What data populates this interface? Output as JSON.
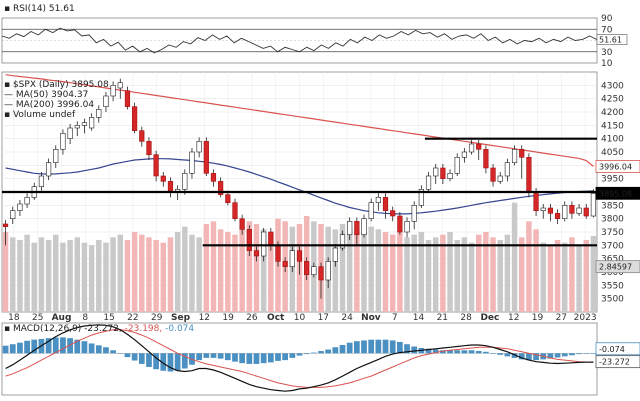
{
  "rsi": {
    "label": "RSI(14) 51.61",
    "value": 51.61,
    "levels": [
      70,
      50,
      30
    ],
    "ylim": [
      10,
      90
    ],
    "tick_labels": [
      "90",
      "70",
      "50",
      "30",
      "10"
    ],
    "current_label": "51.61",
    "series": [
      58,
      54,
      62,
      57,
      66,
      60,
      70,
      64,
      72,
      67,
      69,
      58,
      60,
      46,
      52,
      40,
      47,
      33,
      40,
      30,
      36,
      28,
      34,
      42,
      38,
      48,
      44,
      55,
      50,
      60,
      52,
      58,
      46,
      54,
      48,
      42,
      36,
      40,
      30,
      38,
      34,
      30,
      38,
      32,
      42,
      36,
      46,
      40,
      52,
      46,
      56,
      50,
      60,
      54,
      58,
      66,
      60,
      68,
      62,
      64,
      56,
      62,
      52,
      58,
      60,
      54,
      62,
      50,
      56,
      46,
      52,
      44,
      50,
      48,
      54,
      46,
      52,
      48,
      56,
      50,
      52,
      58,
      51.61
    ]
  },
  "price": {
    "symbol_label": "$SPX (Daily) 3895.08",
    "ma50_label": "MA(50) 3904.37",
    "ma200_label": "MA(200) 3996.04",
    "volume_label": "Volume undef",
    "ylim": [
      3450,
      4350
    ],
    "tick_labels": [
      "4300",
      "4250",
      "4200",
      "4150",
      "4100",
      "4050",
      "4000",
      "3950",
      "3900",
      "3850",
      "3800",
      "3750",
      "3700",
      "3650",
      "3600",
      "3550",
      "3500"
    ],
    "tick_values": [
      4300,
      4250,
      4200,
      4150,
      4100,
      4050,
      4000,
      3950,
      3900,
      3850,
      3800,
      3750,
      3700,
      3650,
      3600,
      3550,
      3500
    ],
    "last_close_label": "3895.08",
    "ma200_tag": "3996.04",
    "volume_tag": "2.84597",
    "horizontal_lines": [
      {
        "name": "resistance-4100",
        "value": 4100,
        "start_index": 59,
        "end_index": 82
      },
      {
        "name": "support-3900",
        "value": 3900,
        "start_index": 0,
        "end_index": 82
      },
      {
        "name": "support-3700",
        "value": 3700,
        "start_index": 28,
        "end_index": 82
      }
    ],
    "candles": [
      [
        3780,
        3770,
        3700
      ],
      [
        3800,
        3830,
        3780
      ],
      [
        3830,
        3855,
        3810
      ],
      [
        3855,
        3880,
        3840
      ],
      [
        3880,
        3920,
        3870
      ],
      [
        3920,
        3960,
        3905
      ],
      [
        3960,
        4010,
        3945
      ],
      [
        4010,
        4060,
        3990
      ],
      [
        4060,
        4120,
        4040
      ],
      [
        4100,
        4140,
        4080
      ],
      [
        4140,
        4150,
        4110
      ],
      [
        4150,
        4160,
        4120
      ],
      [
        4140,
        4180,
        4130
      ],
      [
        4180,
        4210,
        4160
      ],
      [
        4220,
        4260,
        4200
      ],
      [
        4260,
        4300,
        4240
      ],
      [
        4290,
        4310,
        4250
      ],
      [
        4280,
        4220,
        4210
      ],
      [
        4220,
        4130,
        4120
      ],
      [
        4130,
        4090,
        4070
      ],
      [
        4090,
        4040,
        4020
      ],
      [
        4040,
        3960,
        3940
      ],
      [
        3960,
        3940,
        3920
      ],
      [
        3940,
        3900,
        3880
      ],
      [
        3900,
        3910,
        3870
      ],
      [
        3910,
        3970,
        3890
      ],
      [
        3970,
        4050,
        3950
      ],
      [
        4050,
        4090,
        4030
      ],
      [
        4090,
        3970,
        3960
      ],
      [
        3970,
        3940,
        3920
      ],
      [
        3940,
        3890,
        3880
      ],
      [
        3890,
        3860,
        3850
      ],
      [
        3860,
        3800,
        3790
      ],
      [
        3800,
        3760,
        3740
      ],
      [
        3760,
        3680,
        3660
      ],
      [
        3680,
        3660,
        3640
      ],
      [
        3660,
        3750,
        3640
      ],
      [
        3750,
        3700,
        3680
      ],
      [
        3700,
        3640,
        3620
      ],
      [
        3640,
        3620,
        3600
      ],
      [
        3620,
        3680,
        3600
      ],
      [
        3680,
        3640,
        3590
      ],
      [
        3640,
        3590,
        3570
      ],
      [
        3590,
        3620,
        3580
      ],
      [
        3620,
        3570,
        3500
      ],
      [
        3570,
        3640,
        3540
      ],
      [
        3640,
        3690,
        3620
      ],
      [
        3690,
        3740,
        3680
      ],
      [
        3740,
        3790,
        3720
      ],
      [
        3790,
        3740,
        3700
      ],
      [
        3740,
        3800,
        3730
      ],
      [
        3800,
        3860,
        3790
      ],
      [
        3860,
        3880,
        3830
      ],
      [
        3880,
        3830,
        3800
      ],
      [
        3830,
        3810,
        3790
      ],
      [
        3810,
        3750,
        3740
      ],
      [
        3750,
        3790,
        3730
      ],
      [
        3790,
        3850,
        3760
      ],
      [
        3850,
        3910,
        3840
      ],
      [
        3910,
        3960,
        3900
      ],
      [
        3960,
        3990,
        3930
      ],
      [
        3990,
        3950,
        3930
      ],
      [
        3950,
        3970,
        3940
      ],
      [
        3970,
        4030,
        3960
      ],
      [
        4030,
        4050,
        4010
      ],
      [
        4050,
        4080,
        4040
      ],
      [
        4080,
        4060,
        4020
      ],
      [
        4060,
        3990,
        3970
      ],
      [
        3990,
        3940,
        3920
      ],
      [
        3940,
        3960,
        3930
      ],
      [
        3960,
        4010,
        3940
      ],
      [
        4010,
        4060,
        4000
      ],
      [
        4060,
        4030,
        3950
      ],
      [
        4030,
        3900,
        3880
      ],
      [
        3900,
        3830,
        3810
      ],
      [
        3830,
        3840,
        3800
      ],
      [
        3840,
        3820,
        3790
      ],
      [
        3820,
        3800,
        3780
      ],
      [
        3800,
        3850,
        3790
      ],
      [
        3850,
        3820,
        3800
      ],
      [
        3820,
        3840,
        3810
      ],
      [
        3840,
        3810,
        3800
      ],
      [
        3810,
        3895.08,
        3805
      ]
    ],
    "ma50": [
      3990,
      3985,
      3980,
      3975,
      3970,
      3968,
      3967,
      3968,
      3970,
      3972,
      3975,
      3980,
      3985,
      3990,
      3997,
      4005,
      4010,
      4015,
      4020,
      4022,
      4024,
      4025,
      4025,
      4024,
      4022,
      4020,
      4018,
      4015,
      4012,
      4008,
      4003,
      3997,
      3990,
      3983,
      3975,
      3966,
      3957,
      3948,
      3938,
      3928,
      3918,
      3908,
      3898,
      3888,
      3878,
      3868,
      3858,
      3850,
      3842,
      3836,
      3830,
      3826,
      3822,
      3820,
      3818,
      3818,
      3818,
      3820,
      3822,
      3825,
      3828,
      3832,
      3836,
      3840,
      3845,
      3850,
      3855,
      3860,
      3864,
      3868,
      3872,
      3876,
      3880,
      3884,
      3887,
      3890,
      3893,
      3896,
      3898,
      3900,
      3902,
      3903,
      3904.37
    ],
    "ma200": [
      4340,
      4336,
      4333,
      4330,
      4327,
      4324,
      4320,
      4317,
      4314,
      4310,
      4306,
      4302,
      4298,
      4294,
      4290,
      4286,
      4282,
      4278,
      4274,
      4270,
      4266,
      4262,
      4258,
      4254,
      4250,
      4246,
      4242,
      4238,
      4234,
      4230,
      4226,
      4222,
      4218,
      4214,
      4210,
      4206,
      4202,
      4198,
      4194,
      4190,
      4186,
      4182,
      4178,
      4174,
      4170,
      4166,
      4162,
      4158,
      4154,
      4150,
      4146,
      4142,
      4138,
      4134,
      4130,
      4126,
      4122,
      4118,
      4114,
      4110,
      4106,
      4102,
      4098,
      4094,
      4090,
      4086,
      4082,
      4078,
      4074,
      4070,
      4066,
      4062,
      4058,
      4054,
      4050,
      4046,
      4042,
      4038,
      4034,
      4030,
      4026,
      4018,
      3996.04
    ],
    "volume": [
      3.0,
      2.8,
      2.7,
      2.9,
      2.6,
      2.8,
      2.7,
      2.9,
      2.6,
      2.7,
      2.8,
      2.6,
      2.5,
      2.7,
      2.6,
      2.8,
      2.9,
      2.7,
      3.0,
      2.9,
      2.8,
      2.7,
      2.6,
      2.8,
      3.0,
      3.2,
      2.9,
      2.8,
      3.3,
      3.4,
      3.1,
      3.0,
      2.9,
      3.2,
      3.4,
      3.3,
      3.1,
      3.0,
      3.5,
      3.4,
      3.2,
      3.3,
      3.6,
      3.4,
      3.3,
      3.2,
      3.1,
      3.3,
      3.2,
      3.1,
      3.0,
      3.2,
      3.1,
      3.0,
      2.9,
      3.0,
      2.8,
      2.9,
      3.0,
      2.7,
      2.8,
      2.9,
      3.0,
      2.7,
      2.8,
      2.6,
      2.9,
      3.0,
      2.8,
      2.7,
      2.9,
      4.1,
      2.8,
      3.4,
      3.1,
      2.6,
      2.5,
      2.7,
      2.6,
      2.8,
      2.5,
      2.7,
      2.85
    ]
  },
  "macd": {
    "label": "MACD(12,26,9) -23.272, -23.198, -0.074",
    "label_parts": {
      "name": "MACD(12,26,9)",
      "macd": "-23.272",
      "signal": "-23.198",
      "hist": "-0.074"
    },
    "ylim": [
      -110,
      80
    ],
    "hist_tag": "-0.074",
    "macd_tag": "-23.272",
    "macd_line": [
      -40,
      -30,
      -18,
      -5,
      8,
      20,
      32,
      44,
      54,
      62,
      68,
      72,
      74,
      75,
      74,
      70,
      62,
      50,
      36,
      20,
      4,
      -12,
      -26,
      -38,
      -46,
      -48,
      -46,
      -40,
      -40,
      -44,
      -50,
      -58,
      -66,
      -74,
      -82,
      -88,
      -92,
      -96,
      -98,
      -100,
      -98,
      -94,
      -92,
      -88,
      -84,
      -78,
      -70,
      -60,
      -50,
      -40,
      -32,
      -24,
      -16,
      -8,
      -2,
      2,
      4,
      6,
      8,
      10,
      12,
      14,
      16,
      18,
      20,
      22,
      22,
      20,
      16,
      10,
      4,
      -4,
      -12,
      -18,
      -22,
      -24,
      -26,
      -27,
      -26,
      -25,
      -24,
      -23.5,
      -23.272
    ],
    "signal_line": [
      -60,
      -54,
      -46,
      -38,
      -28,
      -18,
      -8,
      2,
      12,
      22,
      32,
      40,
      48,
      54,
      58,
      62,
      62,
      60,
      55,
      48,
      40,
      30,
      20,
      10,
      0,
      -8,
      -16,
      -22,
      -28,
      -32,
      -36,
      -40,
      -44,
      -48,
      -54,
      -60,
      -66,
      -72,
      -78,
      -82,
      -86,
      -88,
      -90,
      -90,
      -90,
      -88,
      -86,
      -82,
      -78,
      -72,
      -66,
      -60,
      -52,
      -44,
      -36,
      -28,
      -20,
      -12,
      -6,
      -2,
      2,
      6,
      8,
      10,
      12,
      14,
      16,
      16,
      16,
      14,
      12,
      8,
      4,
      0,
      -4,
      -8,
      -12,
      -16,
      -18,
      -20,
      -22,
      -23,
      -23.198
    ]
  },
  "x_axis": {
    "labels": [
      "18",
      "25",
      "Aug",
      "8",
      "15",
      "22",
      "29",
      "Sep",
      "12",
      "19",
      "26",
      "Oct",
      "10",
      "17",
      "24",
      "Nov",
      "7",
      "14",
      "21",
      "28",
      "Dec",
      "12",
      "19",
      "27",
      "2023"
    ]
  }
}
